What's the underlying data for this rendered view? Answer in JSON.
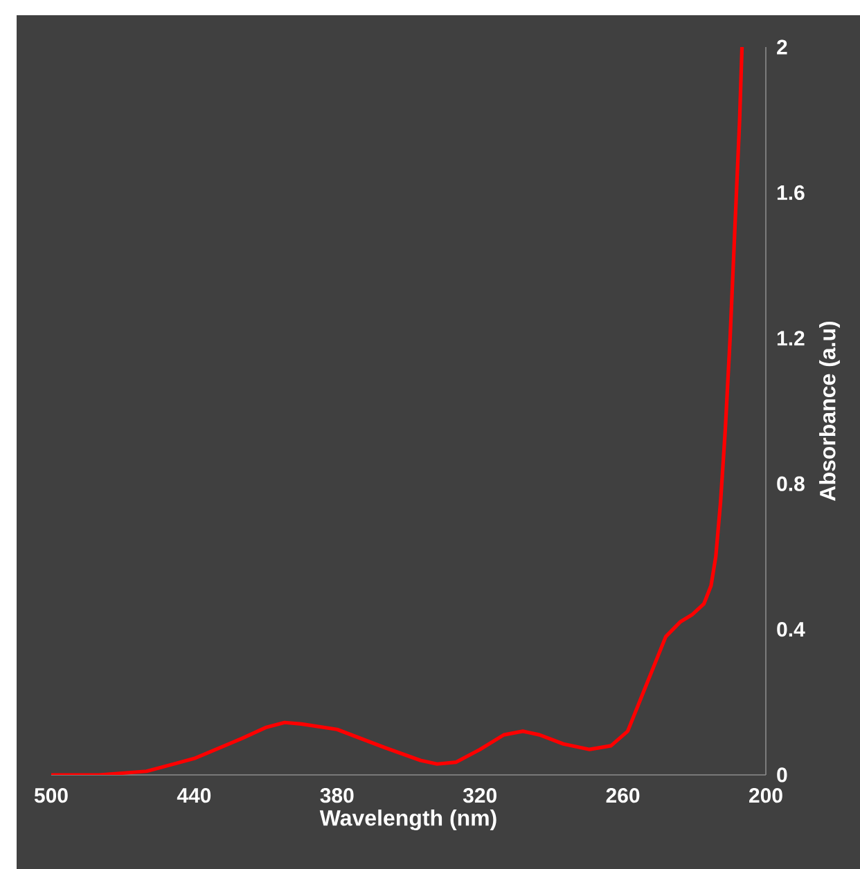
{
  "chart_data": {
    "type": "line",
    "xlabel": "Wavelength (nm)",
    "ylabel": "Absorbance (a.u)",
    "x": [
      500,
      480,
      460,
      440,
      420,
      410,
      402,
      395,
      380,
      360,
      345,
      338,
      330,
      320,
      310,
      302,
      295,
      285,
      274,
      265,
      258,
      250,
      242,
      236,
      231,
      226,
      223,
      221,
      219,
      217,
      215,
      213,
      211,
      210
    ],
    "series": [
      {
        "color": "#ff0000",
        "values": [
          0,
          0,
          0.01,
          0.045,
          0.1,
          0.13,
          0.144,
          0.14,
          0.125,
          0.075,
          0.04,
          0.03,
          0.035,
          0.07,
          0.11,
          0.12,
          0.11,
          0.085,
          0.07,
          0.08,
          0.12,
          0.25,
          0.38,
          0.42,
          0.44,
          0.47,
          0.52,
          0.6,
          0.75,
          0.95,
          1.2,
          1.5,
          1.8,
          2.0
        ]
      }
    ],
    "xlim": [
      500,
      200
    ],
    "ylim": [
      0,
      2
    ],
    "xticks": [
      500,
      440,
      380,
      320,
      260,
      200
    ],
    "yticks": [
      0,
      0.4,
      0.8,
      1.2,
      1.6,
      2
    ],
    "grid": false,
    "marker": "none",
    "line_style": "solid"
  }
}
